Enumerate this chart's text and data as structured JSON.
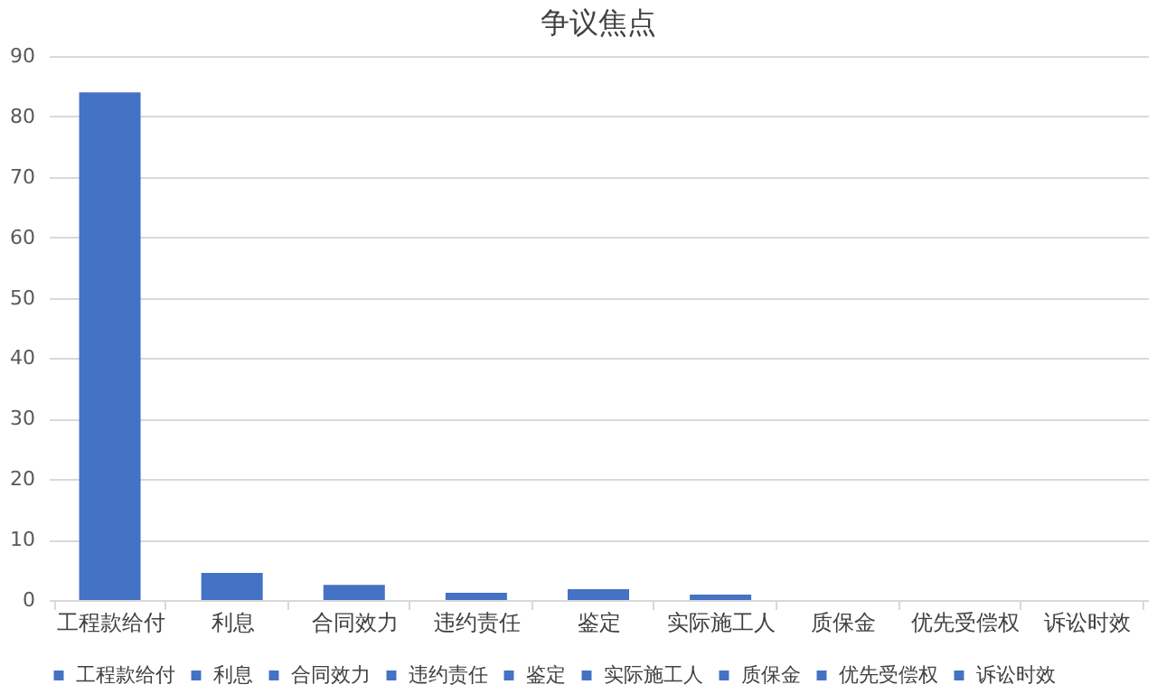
{
  "chart_data": {
    "type": "bar",
    "title": "争议焦点",
    "categories": [
      "工程款给付",
      "利息",
      "合同效力",
      "违约责任",
      "鉴定",
      "实际施工人",
      "质保金",
      "优先受偿权",
      "诉讼时效"
    ],
    "series": [
      {
        "name": "工程款给付",
        "color": "#4472c4",
        "values": [
          84,
          null,
          null,
          null,
          null,
          null,
          null,
          null,
          null
        ]
      },
      {
        "name": "利息",
        "color": "#4472c4",
        "values": [
          null,
          4.5,
          null,
          null,
          null,
          null,
          null,
          null,
          null
        ]
      },
      {
        "name": "合同效力",
        "color": "#4472c4",
        "values": [
          null,
          null,
          2.5,
          null,
          null,
          null,
          null,
          null,
          null
        ]
      },
      {
        "name": "违约责任",
        "color": "#4472c4",
        "values": [
          null,
          null,
          null,
          1.2,
          null,
          null,
          null,
          null,
          null
        ]
      },
      {
        "name": "鉴定",
        "color": "#4472c4",
        "values": [
          null,
          null,
          null,
          null,
          1.8,
          null,
          null,
          null,
          null
        ]
      },
      {
        "name": "实际施工人",
        "color": "#4472c4",
        "values": [
          null,
          null,
          null,
          null,
          null,
          0.9,
          null,
          null,
          null
        ]
      },
      {
        "name": "质保金",
        "color": "#4472c4",
        "values": [
          null,
          null,
          null,
          null,
          null,
          null,
          0,
          null,
          null
        ]
      },
      {
        "name": "优先受偿权",
        "color": "#4472c4",
        "values": [
          null,
          null,
          null,
          null,
          null,
          null,
          null,
          0,
          null
        ]
      },
      {
        "name": "诉讼时效",
        "color": "#4472c4",
        "values": [
          null,
          null,
          null,
          null,
          null,
          null,
          null,
          null,
          0
        ]
      }
    ],
    "ylim": [
      0,
      90
    ],
    "yticks": [
      0,
      10,
      20,
      30,
      40,
      50,
      60,
      70,
      80,
      90
    ],
    "grid": "y",
    "legend": "bottom"
  }
}
